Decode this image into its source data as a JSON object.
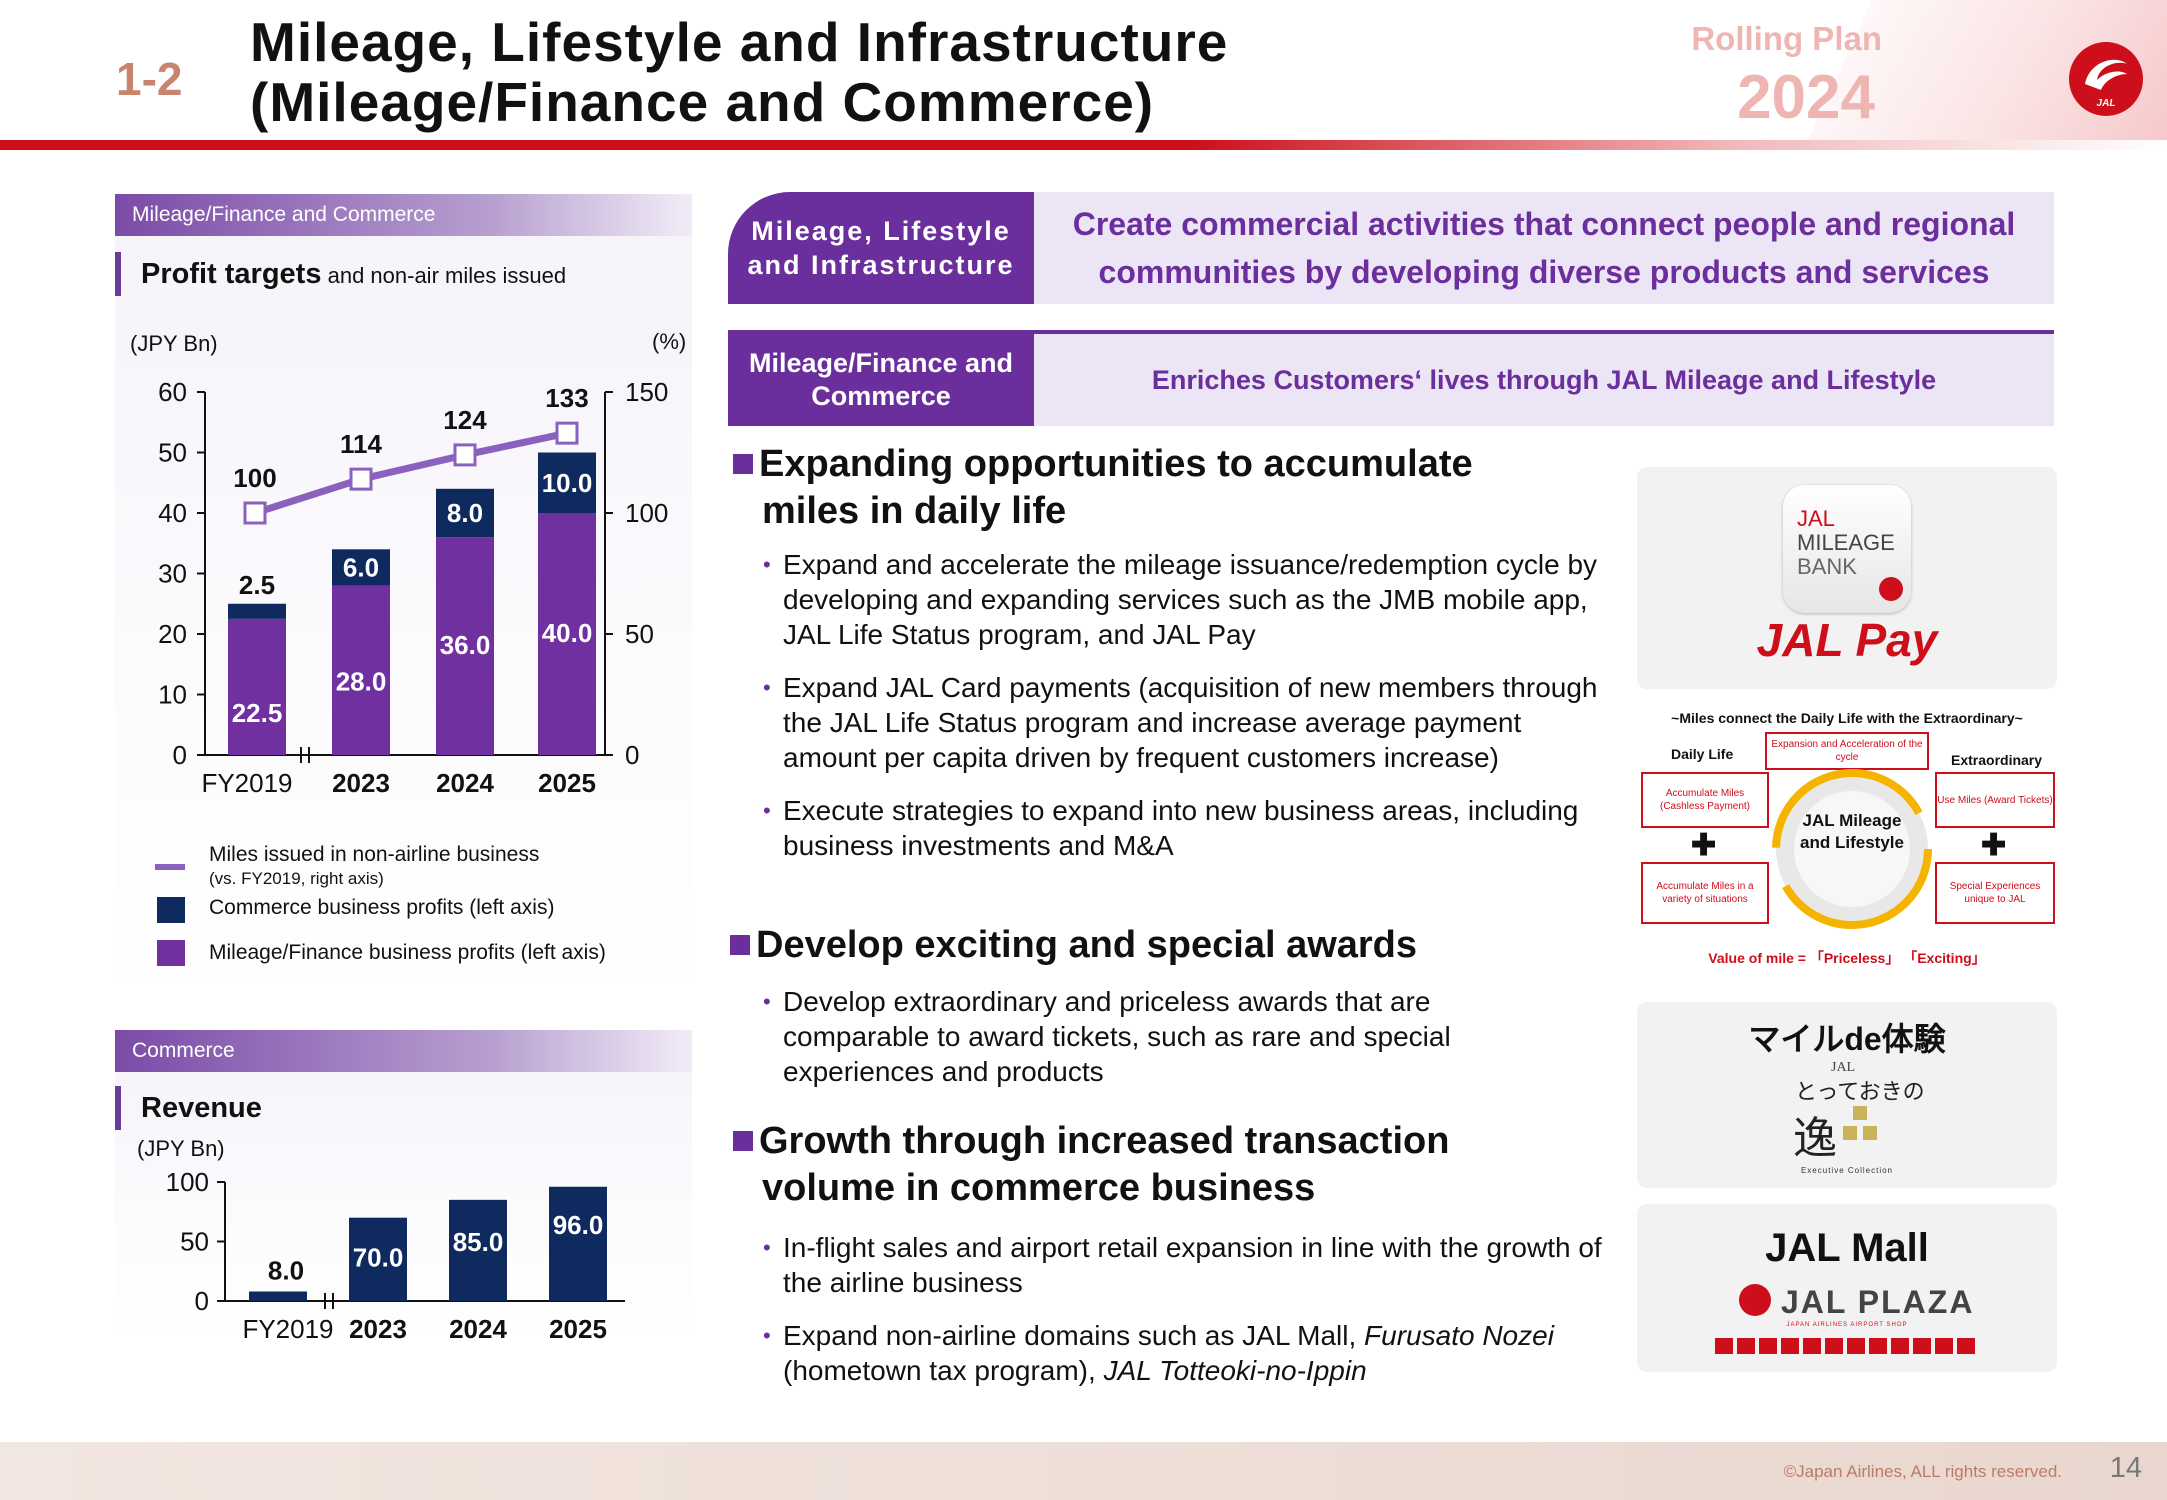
{
  "header": {
    "section_number": "1-2",
    "title_line1": "Mileage, Lifestyle and Infrastructure",
    "title_line2": "(Mileage/Finance and Commerce)",
    "plan_label": "Rolling Plan",
    "plan_year": "2024",
    "logo_text": "JAL",
    "accent_color": "#cc0f1b"
  },
  "left_panel_1": {
    "section_header": "Mileage/Finance and Commerce",
    "title_bold": "Profit targets",
    "title_rest": " and non-air miles issued",
    "left_unit": "(JPY Bn)",
    "right_unit": "(%)"
  },
  "left_panel_2": {
    "section_header": "Commerce",
    "title": "Revenue",
    "unit": "(JPY Bn)"
  },
  "chart_data": [
    {
      "type": "bar",
      "stacked": true,
      "categories": [
        "FY2019",
        "2023",
        "2024",
        "2025"
      ],
      "y_ticks": [
        "0",
        "10",
        "20",
        "30",
        "40",
        "50",
        "60"
      ],
      "y2_ticks": [
        "0",
        "50",
        "100",
        "150"
      ],
      "ylim": [
        0,
        60
      ],
      "y2lim": [
        0,
        150
      ],
      "series": [
        {
          "name": "Mileage/Finance business profits (left axis)",
          "color": "#7030a0",
          "values": [
            22.5,
            28.0,
            36.0,
            40.0
          ],
          "labels": [
            "22.5",
            "28.0",
            "36.0",
            "40.0"
          ]
        },
        {
          "name": "Commerce business profits (left axis)",
          "color": "#0f2a5f",
          "values": [
            2.5,
            6.0,
            8.0,
            10.0
          ],
          "labels": [
            "2.5",
            "6.0",
            "8.0",
            "10.0"
          ]
        },
        {
          "name": "Miles issued in non-airline business",
          "name_note": "(vs. FY2019, right axis)",
          "type": "line",
          "axis": "right",
          "color": "#8a61bd",
          "values": [
            100,
            114,
            124,
            133
          ],
          "labels": [
            "100",
            "114",
            "124",
            "133"
          ]
        }
      ],
      "legend_placement": "bottom"
    },
    {
      "type": "bar",
      "categories": [
        "FY2019",
        "2023",
        "2024",
        "2025"
      ],
      "y_ticks": [
        "0",
        "50",
        "100"
      ],
      "ylim": [
        0,
        100
      ],
      "series": [
        {
          "color": "#0f2a5f",
          "values": [
            8.0,
            70.0,
            85.0,
            96.0
          ],
          "labels": [
            "8.0",
            "70.0",
            "85.0",
            "96.0"
          ]
        }
      ]
    }
  ],
  "right": {
    "banner1_left": "Mileage, Lifestyle and Infrastructure",
    "banner1_right": "Create commercial activities that connect people and regional communities by developing diverse products and services",
    "banner2_left": "Mileage/Finance and Commerce",
    "banner2_right": "Enriches Customers‘ lives through JAL Mileage and Lifestyle",
    "sections": [
      {
        "heading_line1": "Expanding opportunities to accumulate",
        "heading_line2": "miles in daily life",
        "bullets": [
          "Expand and accelerate the mileage issuance/redemption cycle by developing and expanding services such as the JMB mobile app, JAL Life Status program, and JAL Pay",
          "Expand JAL Card payments (acquisition of new members through the JAL Life Status program and increase average payment amount per capita driven by frequent customers increase)",
          "Execute strategies to expand into new business areas, including business investments and M&A"
        ]
      },
      {
        "heading_line1": "Develop exciting and special awards",
        "bullets": [
          "Develop extraordinary and priceless awards that are comparable to award tickets, such as rare and special experiences and products"
        ]
      },
      {
        "heading_line1": "Growth through increased transaction",
        "heading_line2": "volume in commerce business",
        "bullets": [
          "In-flight sales and airport retail expansion in line with the growth of the airline business"
        ],
        "bullet_mixed": {
          "part1": "Expand non-airline domains such as JAL Mall, ",
          "italic1": "Furusato Nozei",
          "part2": " (hometown tax program), ",
          "italic2": "JAL Totteoki-no-Ippin"
        }
      }
    ]
  },
  "images": {
    "app_icon_line1": "JAL",
    "app_icon_line2": "MILEAGE",
    "app_icon_line3": "BANK",
    "jal_pay": "JAL Pay",
    "cycle_title": "~Miles connect the Daily Life with the Extraordinary~",
    "cycle_daily": "Daily Life",
    "cycle_extra": "Extraordinary",
    "cycle_center_top": "Expansion and Acceleration of the cycle",
    "cycle_left_top": "Accumulate Miles (Cashless Payment)",
    "cycle_left_bottom": "Accumulate Miles in a variety of situations",
    "cycle_right_top": "Use Miles (Award Tickets)",
    "cycle_right_bottom": "Special Experiences unique to JAL",
    "cycle_core": "JAL Mileage and Lifestyle",
    "cycle_value": "Value of mile = 「Priceless」 「Exciting」",
    "mile_de_taiken": "マイルde体験",
    "totteoki_small": "JAL",
    "totteoki": "とっておきの",
    "ippin_char": "逸",
    "executive": "Executive Collection",
    "jal_mall": "JAL Mall",
    "jal_plaza": "JAL PLAZA",
    "jal_plaza_sub": "JAPAN AIRLINES AIRPORT SHOP"
  },
  "footer": {
    "copyright": "©Japan Airlines, ALL rights reserved.",
    "page_number": "14"
  }
}
